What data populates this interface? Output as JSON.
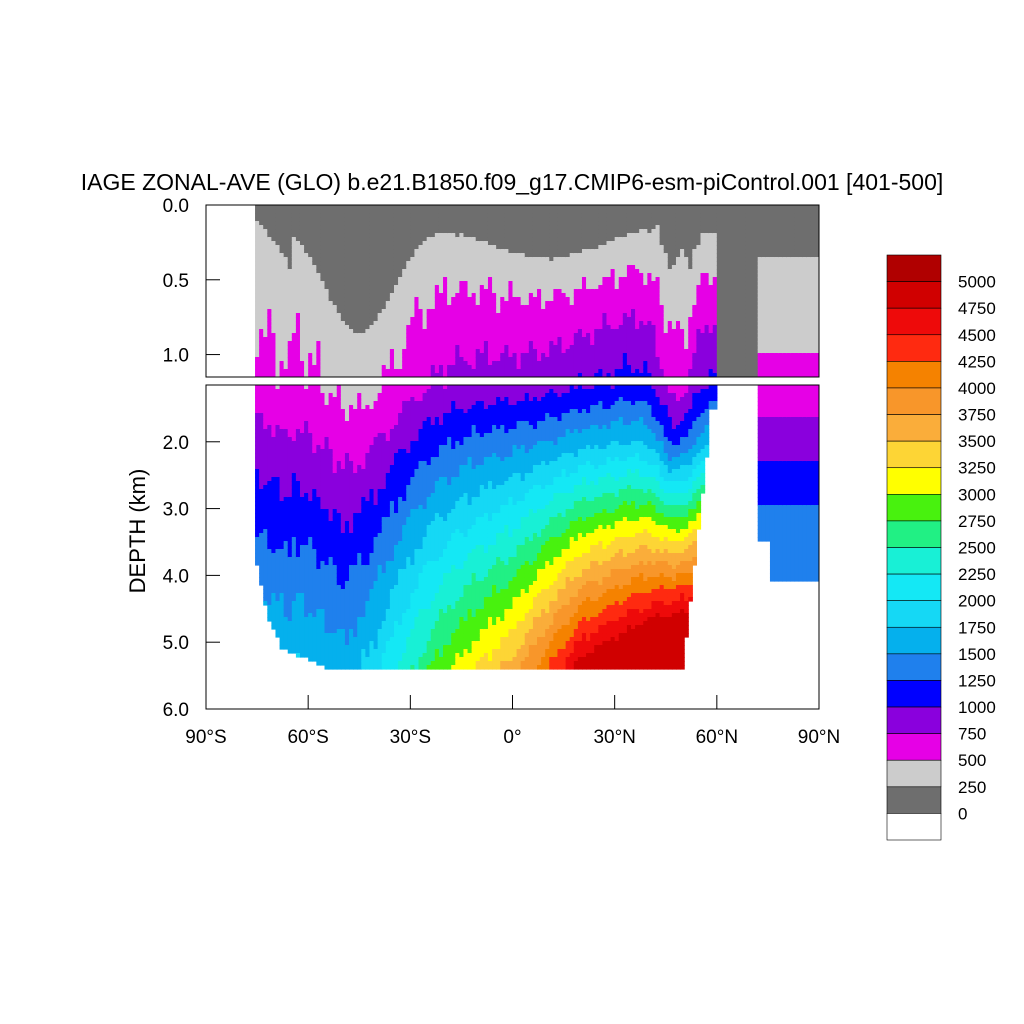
{
  "chart_data": {
    "type": "heatmap",
    "title": "IAGE ZONAL-AVE (GLO) b.e21.B1850.f09_g17.CMIP6-esm-piControl.001 [401-500]",
    "xlabel": "",
    "ylabel": "DEPTH (km)",
    "xlim": [
      -90,
      90
    ],
    "ylim_upper": [
      0.0,
      1.15
    ],
    "ylim_lower": [
      1.15,
      6.0
    ],
    "x_ticks": [
      -90,
      -60,
      -30,
      0,
      30,
      60,
      90
    ],
    "x_tick_labels": [
      "90°S",
      "60°S",
      "30°S",
      "0°",
      "30°N",
      "60°N",
      "90°N"
    ],
    "y_ticks_upper": [
      0.0,
      0.5,
      1.0
    ],
    "y_tick_labels_upper": [
      "0.0",
      "0.5",
      "1.0"
    ],
    "y_ticks_lower": [
      2.0,
      3.0,
      4.0,
      5.0,
      6.0
    ],
    "y_tick_labels_lower": [
      "2.0",
      "3.0",
      "4.0",
      "5.0",
      "6.0"
    ],
    "contour_levels": [
      0,
      250,
      500,
      750,
      1000,
      1250,
      1500,
      1750,
      2000,
      2250,
      2500,
      2750,
      3000,
      3250,
      3500,
      3750,
      4000,
      4250,
      4500,
      4750,
      5000
    ],
    "colorbar_labels": [
      "5000",
      "4750",
      "4500",
      "4250",
      "4000",
      "3750",
      "3500",
      "3250",
      "3000",
      "2750",
      "2500",
      "2250",
      "2000",
      "1750",
      "1500",
      "1250",
      "1000",
      "750",
      "500",
      "250",
      "0"
    ],
    "colorbar_colors": [
      "#b00000",
      "#d00000",
      "#ee0a0a",
      "#ff2a10",
      "#f58200",
      "#f8962a",
      "#faad3a",
      "#fdd535",
      "#ffff00",
      "#48f20e",
      "#21f084",
      "#18f0d6",
      "#14e8f5",
      "#15d8f5",
      "#05b0ed",
      "#1f80ed",
      "#0000ff",
      "#8a00dd",
      "#e600e6",
      "#cccccc",
      "#6e6e6e",
      "#ffffff"
    ],
    "grid": false,
    "legend": "right colorbar",
    "sections": [
      {
        "lat": [
          -90,
          -75
        ],
        "top_km": 0.0,
        "bottom_km": 6.0,
        "value": null
      },
      {
        "lat": [
          -72,
          -60
        ],
        "surface_age": 300,
        "deep_age": 1500
      },
      {
        "lat": [
          -45,
          -40
        ],
        "surface_age": 300,
        "deep_age": 1800
      },
      {
        "lat": [
          -20,
          0
        ],
        "surface_age": 150,
        "deep_age": 3000
      },
      {
        "lat": [
          20,
          40
        ],
        "surface_age": 150,
        "deep_age": 3600
      },
      {
        "lat": [
          45,
          55
        ],
        "surface_age": 250,
        "deep_age": 3900
      },
      {
        "lat": [
          62,
          72
        ],
        "surface_age": 100,
        "deep_age": null
      },
      {
        "lat": [
          75,
          90
        ],
        "surface_age": 250,
        "deep_age": 1100
      }
    ]
  }
}
